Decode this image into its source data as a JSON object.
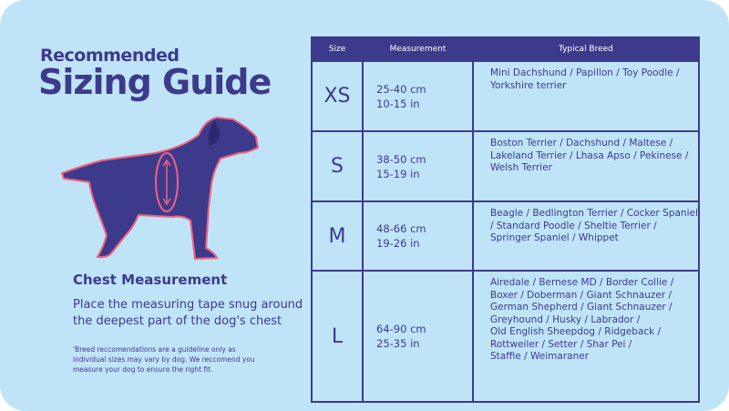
{
  "header": {
    "subtitle": "Recommended",
    "title": "Sizing Guide"
  },
  "chest": {
    "title": "Chest Measurement",
    "description_lines": [
      "Place the measuring tape snug around",
      "the deepest part of the dog's chest"
    ]
  },
  "footnote_lines": [
    "'Breed reccomendations are a guideline only as",
    "individual sizes may vary by dog. We reccomend you",
    "measure your dog to ensure the right fit."
  ],
  "table": {
    "columns": [
      "Size",
      "Measurement",
      "Typical Breed"
    ],
    "rows": [
      {
        "size": "XS",
        "measurement": [
          "25-40 cm",
          "10-15 in"
        ],
        "breed": [
          "Mini Dachshund / Papillon / Toy Poodle /",
          "Yorkshire terrier"
        ]
      },
      {
        "size": "S",
        "measurement": [
          "38-50 cm",
          "15-19 in"
        ],
        "breed": [
          "Boston Terrier / Dachshund / Maltese /",
          "Lakeland Terrier / Lhasa Apso / Pekinese /",
          "Welsh Terrier"
        ]
      },
      {
        "size": "M",
        "measurement": [
          "48-66 cm",
          "19-26 in"
        ],
        "breed": [
          "Beagle / Bedlington Terrier / Cocker Spaniel",
          "/ Standard Poodle / Sheltie Terrier /",
          "Springer Spaniel / Whippet"
        ]
      },
      {
        "size": "L",
        "measurement": [
          "64-90 cm",
          "25-35 in"
        ],
        "breed": [
          "Airedale / Bernese MD / Border Collie /",
          "Boxer / Doberman / Giant Schnauzer /",
          "German Shepherd / Giant Schnauzer /",
          "Greyhound / Husky / Labrador /",
          "Old English Sheepdog / Ridgeback /",
          "Rottweiler / Setter / Shar Pei /",
          "Staffie / Weimaraner"
        ]
      }
    ]
  }
}
